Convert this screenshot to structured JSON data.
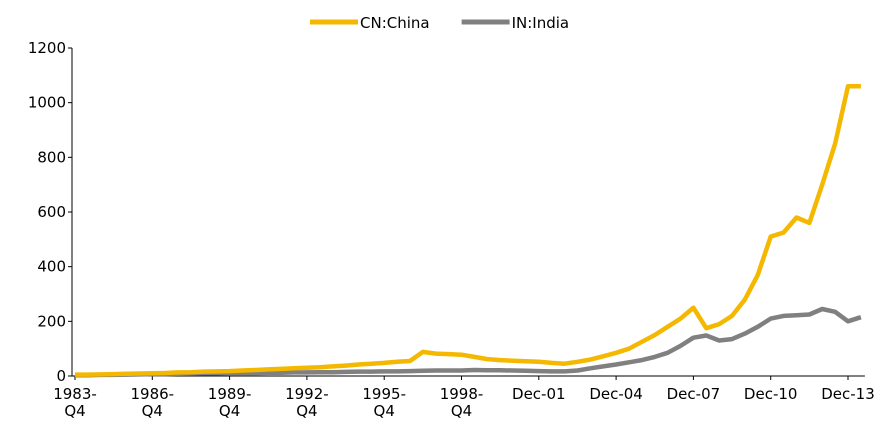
{
  "chart_data": {
    "type": "line",
    "categories": [
      "1983-\nQ4",
      null,
      null,
      null,
      null,
      null,
      "1986-\nQ4",
      null,
      null,
      null,
      null,
      null,
      "1989-\nQ4",
      null,
      null,
      null,
      null,
      null,
      "1992-\nQ4",
      null,
      null,
      null,
      null,
      null,
      "1995-\nQ4",
      null,
      null,
      null,
      null,
      null,
      "1998-\nQ4",
      null,
      null,
      null,
      null,
      null,
      "Dec-01",
      null,
      null,
      null,
      null,
      null,
      "Dec-04",
      null,
      null,
      null,
      null,
      null,
      "Dec-07",
      null,
      null,
      null,
      null,
      null,
      "Dec-10",
      null,
      null,
      null,
      null,
      null,
      "Dec-13",
      null
    ],
    "series": [
      {
        "name": "CN:China",
        "color": "#f5b800",
        "values": [
          5,
          5,
          6,
          7,
          8,
          9,
          10,
          11,
          13,
          14,
          16,
          17,
          18,
          20,
          22,
          24,
          26,
          28,
          30,
          32,
          35,
          38,
          42,
          45,
          48,
          52,
          55,
          88,
          82,
          80,
          78,
          70,
          62,
          58,
          56,
          54,
          52,
          48,
          45,
          52,
          60,
          72,
          85,
          100,
          125,
          150,
          180,
          210,
          250,
          175,
          190,
          220,
          280,
          370,
          510,
          525,
          580,
          560,
          700,
          850,
          1060,
          1060
        ]
      },
      {
        "name": "IN:India",
        "color": "#808080",
        "values": [
          3,
          3,
          4,
          4,
          5,
          6,
          7,
          7,
          8,
          9,
          10,
          10,
          11,
          11,
          11,
          12,
          12,
          13,
          13,
          14,
          14,
          15,
          16,
          16,
          17,
          17,
          18,
          19,
          20,
          20,
          20,
          22,
          21,
          21,
          20,
          19,
          18,
          17,
          17,
          20,
          28,
          35,
          42,
          50,
          58,
          70,
          85,
          110,
          140,
          148,
          130,
          135,
          155,
          180,
          210,
          220,
          222,
          225,
          245,
          235,
          200,
          215
        ]
      }
    ],
    "ylim": [
      0,
      1200
    ],
    "yticks": [
      0,
      200,
      400,
      600,
      800,
      1000,
      1200
    ],
    "grid": false,
    "legend": "top"
  }
}
